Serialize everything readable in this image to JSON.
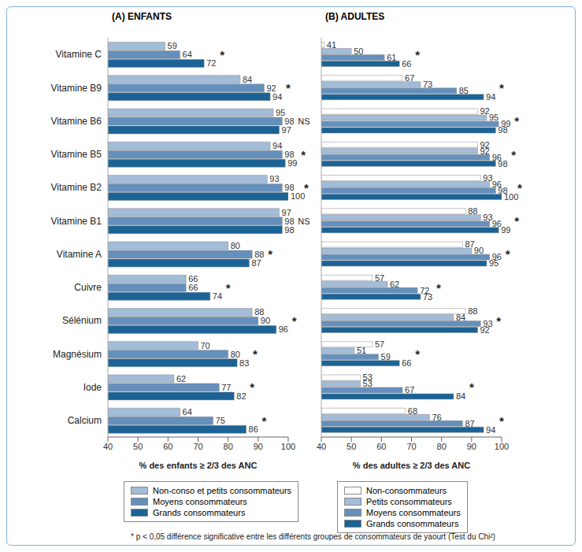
{
  "chart_data": [
    {
      "type": "bar",
      "title": "(A) ENFANTS",
      "orientation": "horizontal",
      "data_labels": true,
      "grid": false,
      "categories": [
        "Vitamine C",
        "Vitamine B9",
        "Vitamine B6",
        "Vitamine B5",
        "Vitamine B2",
        "Vitamine B1",
        "Vitamine A",
        "Cuivre",
        "Sélénium",
        "Magnésium",
        "Iode",
        "Calcium"
      ],
      "series": [
        {
          "name": "Non-conso et petits consommateurs",
          "color": "#a3bcd8",
          "values": [
            59,
            84,
            95,
            94,
            93,
            97,
            80,
            66,
            88,
            70,
            62,
            64
          ]
        },
        {
          "name": "Moyens consommateurs",
          "color": "#6590bd",
          "values": [
            64,
            92,
            98,
            98,
            98,
            98,
            88,
            66,
            90,
            80,
            77,
            75
          ]
        },
        {
          "name": "Grands consommateurs",
          "color": "#1b6396",
          "values": [
            72,
            94,
            97,
            99,
            100,
            98,
            87,
            74,
            96,
            83,
            82,
            86
          ]
        }
      ],
      "significance": [
        "*",
        "*",
        "NS",
        "*",
        "*",
        "NS",
        "*",
        "*",
        "*",
        "*",
        "*",
        "*"
      ],
      "xlim": [
        40,
        100
      ],
      "xticks": [
        40,
        50,
        60,
        70,
        80,
        90,
        100
      ],
      "xlabel": "% des enfants ≥ 2/3 des ANC"
    },
    {
      "type": "bar",
      "title": "(B) ADULTES",
      "orientation": "horizontal",
      "data_labels": true,
      "grid": false,
      "tick_labels": "x",
      "categories": [
        "Vitamine C",
        "Vitamine B9",
        "Vitamine B6",
        "Vitamine B5",
        "Vitamine B2",
        "Vitamine B1",
        "Vitamine A",
        "Cuivre",
        "Sélénium",
        "Magnésium",
        "Iode",
        "Calcium"
      ],
      "series": [
        {
          "name": "Non-consommateurs",
          "color": "#ffffff",
          "values": [
            41,
            67,
            92,
            92,
            93,
            88,
            87,
            57,
            88,
            57,
            53,
            68
          ]
        },
        {
          "name": "Petits consommateurs",
          "color": "#a3bcd8",
          "values": [
            50,
            73,
            95,
            92,
            96,
            93,
            90,
            62,
            84,
            51,
            53,
            76
          ]
        },
        {
          "name": "Moyens consommateurs",
          "color": "#6590bd",
          "values": [
            61,
            85,
            99,
            96,
            98,
            96,
            96,
            72,
            93,
            59,
            67,
            87
          ]
        },
        {
          "name": "Grands consommateurs",
          "color": "#1b6396",
          "values": [
            66,
            94,
            98,
            98,
            100,
            99,
            95,
            73,
            92,
            66,
            84,
            94
          ]
        }
      ],
      "significance": [
        "*",
        "*",
        "*",
        "*",
        "*",
        "*",
        "*",
        "*",
        "*",
        "*",
        "*",
        "*"
      ],
      "xlim": [
        40,
        100
      ],
      "xticks": [
        40,
        50,
        60,
        70,
        80,
        90,
        100
      ],
      "xlabel": "% des adultes ≥ 2/3 des ANC"
    }
  ],
  "footnote": "* p < 0,05 différence significative entre les différents groupes de consommateurs de yaourt (Test du Chi²)"
}
